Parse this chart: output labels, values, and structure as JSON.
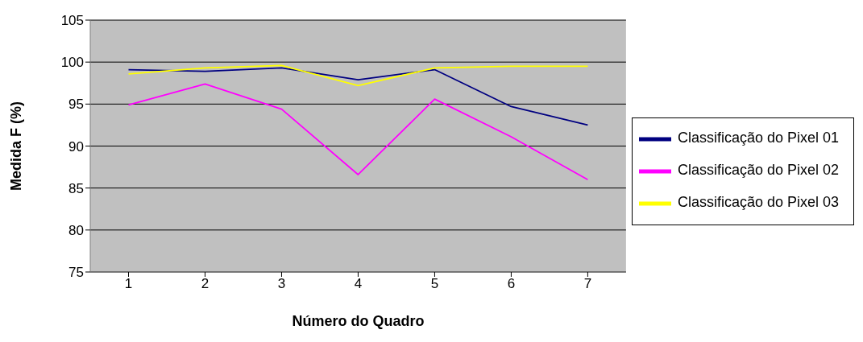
{
  "chart_data": {
    "type": "line",
    "xlabel": "Número do Quadro",
    "ylabel": "Medida F (%)",
    "categories": [
      "1",
      "2",
      "3",
      "4",
      "5",
      "6",
      "7"
    ],
    "series": [
      {
        "name": "Classificação do Pixel 01",
        "color": "#000080",
        "values": [
          99.1,
          98.9,
          99.3,
          97.9,
          99.1,
          94.7,
          92.5
        ]
      },
      {
        "name": "Classificação do Pixel 02",
        "color": "#ff00ff",
        "values": [
          94.9,
          97.4,
          94.4,
          86.6,
          95.6,
          91.1,
          86.0
        ]
      },
      {
        "name": "Classificação do Pixel 03",
        "color": "#ffff00",
        "values": [
          98.6,
          99.3,
          99.6,
          97.2,
          99.3,
          99.5,
          99.5
        ]
      }
    ],
    "ylim": [
      75,
      105
    ],
    "yticks": [
      75,
      80,
      85,
      90,
      95,
      100,
      105
    ],
    "grid": "y",
    "legend": "right",
    "line_style": "solid"
  }
}
